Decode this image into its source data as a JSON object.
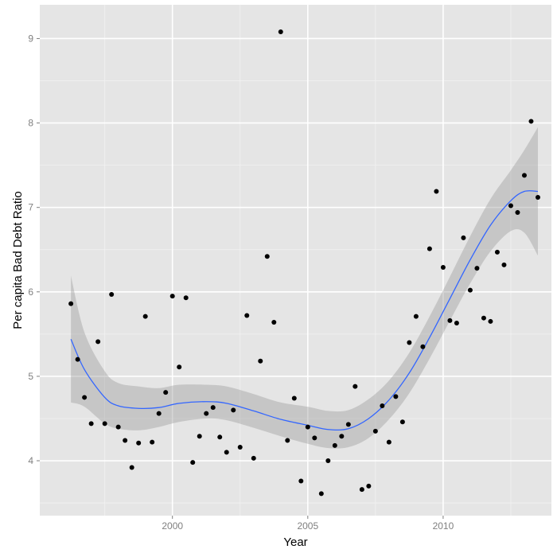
{
  "chart_data": {
    "type": "scatter",
    "title": "",
    "xlabel": "Year",
    "ylabel": "Per capita Bad Debt Ratio",
    "xlim": [
      1995.1,
      2014.0
    ],
    "ylim": [
      3.35,
      9.4
    ],
    "x_ticks": [
      2000,
      2005,
      2010
    ],
    "x_tick_labels": [
      "2000",
      "2005",
      "2010"
    ],
    "y_ticks": [
      4,
      5,
      6,
      7,
      8,
      9
    ],
    "y_tick_labels": [
      "4",
      "5",
      "6",
      "7",
      "8",
      "9"
    ],
    "grid": true,
    "legend": "none",
    "colors": {
      "panel": "#e5e5e5",
      "grid_major": "#ffffff",
      "grid_minor": "#f2f2f2",
      "points": "#000000",
      "smooth_line": "#3366ff",
      "confidence_band": "#999999"
    },
    "points": [
      {
        "x": 1996.25,
        "y": 5.86
      },
      {
        "x": 1996.5,
        "y": 5.2
      },
      {
        "x": 1996.75,
        "y": 4.75
      },
      {
        "x": 1997.0,
        "y": 4.44
      },
      {
        "x": 1997.25,
        "y": 5.41
      },
      {
        "x": 1997.5,
        "y": 4.44
      },
      {
        "x": 1997.75,
        "y": 5.97
      },
      {
        "x": 1998.0,
        "y": 4.4
      },
      {
        "x": 1998.25,
        "y": 4.24
      },
      {
        "x": 1998.5,
        "y": 3.92
      },
      {
        "x": 1998.75,
        "y": 4.21
      },
      {
        "x": 1999.0,
        "y": 5.71
      },
      {
        "x": 1999.25,
        "y": 4.22
      },
      {
        "x": 1999.5,
        "y": 4.56
      },
      {
        "x": 1999.75,
        "y": 4.81
      },
      {
        "x": 2000.0,
        "y": 5.95
      },
      {
        "x": 2000.25,
        "y": 5.11
      },
      {
        "x": 2000.5,
        "y": 5.93
      },
      {
        "x": 2000.75,
        "y": 3.98
      },
      {
        "x": 2001.0,
        "y": 4.29
      },
      {
        "x": 2001.25,
        "y": 4.56
      },
      {
        "x": 2001.5,
        "y": 4.63
      },
      {
        "x": 2001.75,
        "y": 4.28
      },
      {
        "x": 2002.0,
        "y": 4.1
      },
      {
        "x": 2002.25,
        "y": 4.6
      },
      {
        "x": 2002.5,
        "y": 4.16
      },
      {
        "x": 2002.75,
        "y": 5.72
      },
      {
        "x": 2003.0,
        "y": 4.03
      },
      {
        "x": 2003.25,
        "y": 5.18
      },
      {
        "x": 2003.5,
        "y": 6.42
      },
      {
        "x": 2003.75,
        "y": 5.64
      },
      {
        "x": 2004.0,
        "y": 9.08
      },
      {
        "x": 2004.25,
        "y": 4.24
      },
      {
        "x": 2004.5,
        "y": 4.74
      },
      {
        "x": 2004.75,
        "y": 3.76
      },
      {
        "x": 2005.0,
        "y": 4.4
      },
      {
        "x": 2005.25,
        "y": 4.27
      },
      {
        "x": 2005.5,
        "y": 3.61
      },
      {
        "x": 2005.75,
        "y": 4.0
      },
      {
        "x": 2006.0,
        "y": 4.18
      },
      {
        "x": 2006.25,
        "y": 4.29
      },
      {
        "x": 2006.5,
        "y": 4.43
      },
      {
        "x": 2006.75,
        "y": 4.88
      },
      {
        "x": 2007.0,
        "y": 3.66
      },
      {
        "x": 2007.25,
        "y": 3.7
      },
      {
        "x": 2007.5,
        "y": 4.35
      },
      {
        "x": 2007.75,
        "y": 4.65
      },
      {
        "x": 2008.0,
        "y": 4.22
      },
      {
        "x": 2008.25,
        "y": 4.76
      },
      {
        "x": 2008.5,
        "y": 4.46
      },
      {
        "x": 2008.75,
        "y": 5.4
      },
      {
        "x": 2009.0,
        "y": 5.71
      },
      {
        "x": 2009.25,
        "y": 5.35
      },
      {
        "x": 2009.5,
        "y": 6.51
      },
      {
        "x": 2009.75,
        "y": 7.19
      },
      {
        "x": 2010.0,
        "y": 6.29
      },
      {
        "x": 2010.25,
        "y": 5.66
      },
      {
        "x": 2010.5,
        "y": 5.63
      },
      {
        "x": 2010.75,
        "y": 6.64
      },
      {
        "x": 2011.0,
        "y": 6.02
      },
      {
        "x": 2011.25,
        "y": 6.28
      },
      {
        "x": 2011.5,
        "y": 5.69
      },
      {
        "x": 2011.75,
        "y": 5.65
      },
      {
        "x": 2012.0,
        "y": 6.47
      },
      {
        "x": 2012.25,
        "y": 6.32
      },
      {
        "x": 2012.5,
        "y": 7.02
      },
      {
        "x": 2012.75,
        "y": 6.94
      },
      {
        "x": 2013.0,
        "y": 7.38
      },
      {
        "x": 2013.25,
        "y": 8.02
      },
      {
        "x": 2013.5,
        "y": 7.12
      }
    ],
    "smooth": [
      {
        "x": 1996.25,
        "y": 5.44,
        "lo": 4.69,
        "hi": 6.19
      },
      {
        "x": 1996.75,
        "y": 5.08,
        "lo": 4.64,
        "hi": 5.52
      },
      {
        "x": 1997.5,
        "y": 4.75,
        "lo": 4.44,
        "hi": 5.06
      },
      {
        "x": 1998.0,
        "y": 4.65,
        "lo": 4.38,
        "hi": 4.92
      },
      {
        "x": 1998.75,
        "y": 4.62,
        "lo": 4.36,
        "hi": 4.88
      },
      {
        "x": 1999.5,
        "y": 4.63,
        "lo": 4.4,
        "hi": 4.86
      },
      {
        "x": 2000.25,
        "y": 4.68,
        "lo": 4.46,
        "hi": 4.9
      },
      {
        "x": 2001.25,
        "y": 4.7,
        "lo": 4.5,
        "hi": 4.9
      },
      {
        "x": 2002.0,
        "y": 4.68,
        "lo": 4.48,
        "hi": 4.88
      },
      {
        "x": 2003.0,
        "y": 4.59,
        "lo": 4.39,
        "hi": 4.79
      },
      {
        "x": 2004.0,
        "y": 4.49,
        "lo": 4.29,
        "hi": 4.69
      },
      {
        "x": 2005.0,
        "y": 4.42,
        "lo": 4.2,
        "hi": 4.64
      },
      {
        "x": 2005.75,
        "y": 4.37,
        "lo": 4.15,
        "hi": 4.59
      },
      {
        "x": 2006.5,
        "y": 4.38,
        "lo": 4.16,
        "hi": 4.6
      },
      {
        "x": 2007.25,
        "y": 4.5,
        "lo": 4.27,
        "hi": 4.73
      },
      {
        "x": 2008.0,
        "y": 4.72,
        "lo": 4.49,
        "hi": 4.95
      },
      {
        "x": 2008.75,
        "y": 5.04,
        "lo": 4.8,
        "hi": 5.28
      },
      {
        "x": 2009.5,
        "y": 5.46,
        "lo": 5.21,
        "hi": 5.71
      },
      {
        "x": 2010.25,
        "y": 5.92,
        "lo": 5.66,
        "hi": 6.18
      },
      {
        "x": 2011.0,
        "y": 6.38,
        "lo": 6.1,
        "hi": 6.66
      },
      {
        "x": 2011.75,
        "y": 6.79,
        "lo": 6.48,
        "hi": 7.1
      },
      {
        "x": 2012.5,
        "y": 7.08,
        "lo": 6.72,
        "hi": 7.44
      },
      {
        "x": 2013.0,
        "y": 7.19,
        "lo": 6.7,
        "hi": 7.68
      },
      {
        "x": 2013.5,
        "y": 7.19,
        "lo": 6.43,
        "hi": 7.95
      }
    ]
  }
}
